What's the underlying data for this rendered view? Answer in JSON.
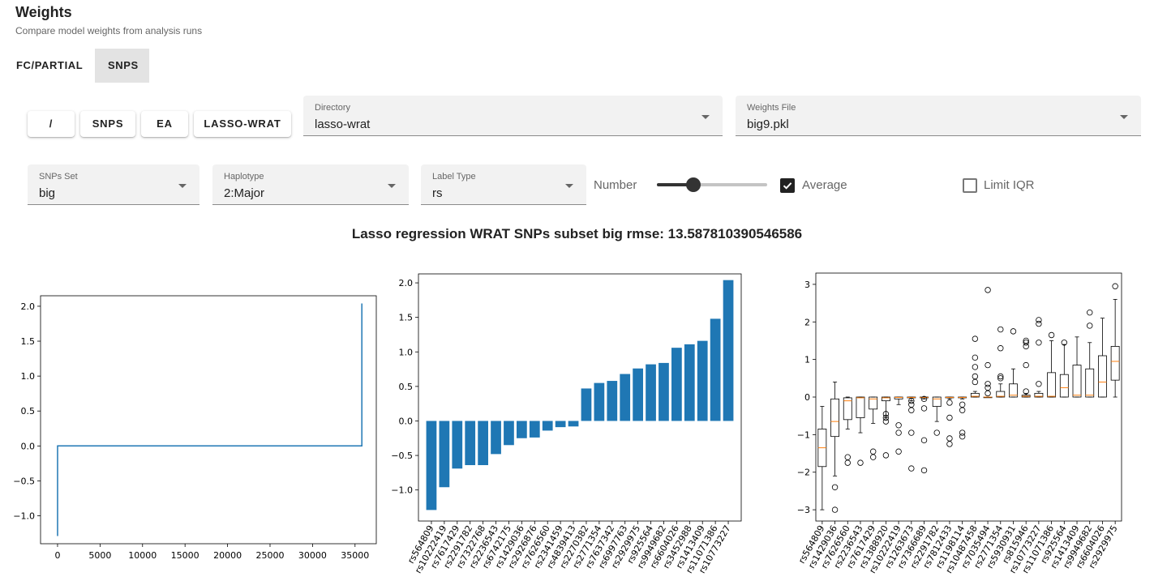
{
  "header": {
    "title": "Weights",
    "subtitle": "Compare model weights from analysis runs"
  },
  "tabs": [
    {
      "label": "FC/PARTIAL",
      "active": false
    },
    {
      "label": "SNPS",
      "active": true
    }
  ],
  "path_buttons": [
    "/",
    "SNPS",
    "EA",
    "LASSO-WRAT"
  ],
  "directory": {
    "label": "Directory",
    "value": "lasso-wrat"
  },
  "weights_file": {
    "label": "Weights File",
    "value": "big9.pkl"
  },
  "snps_set": {
    "label": "SNPs Set",
    "value": "big"
  },
  "haplotype": {
    "label": "Haplotype",
    "value": "2:Major"
  },
  "label_type": {
    "label": "Label Type",
    "value": "rs"
  },
  "number": {
    "label": "Number",
    "value": 0.33
  },
  "average": {
    "label": "Average",
    "checked": true
  },
  "limit_iqr": {
    "label": "Limit IQR",
    "checked": false
  },
  "plot_title": "Lasso regression WRAT SNPs subset big rmse: 13.587810390546586",
  "colors": {
    "bar": "#1f77b4",
    "line": "#1f77b4",
    "median": "#ff7f0e"
  },
  "chart_data": [
    {
      "type": "line",
      "xlim": [
        -2000,
        37500
      ],
      "ylim": [
        -1.4,
        2.15
      ],
      "xticks": [
        0,
        5000,
        10000,
        15000,
        20000,
        25000,
        30000,
        35000
      ],
      "yticks": [
        2.0,
        1.5,
        1.0,
        0.5,
        0.0,
        -0.5,
        -1.0
      ],
      "tick_labels_x": [
        "0",
        "5000",
        "10000",
        "15000",
        "20000",
        "25000",
        "30000",
        "35000"
      ],
      "tick_labels_y": [
        "2.0",
        "1.5",
        "1.0",
        "0.5",
        "0.0",
        "−0.5",
        "−1.0"
      ],
      "points": [
        [
          0,
          -1.29
        ],
        [
          0,
          0
        ],
        [
          35800,
          0
        ],
        [
          35800,
          2.04
        ]
      ]
    },
    {
      "type": "bar",
      "ylim": [
        -1.45,
        2.13
      ],
      "yticks": [
        2.0,
        1.5,
        1.0,
        0.5,
        0.0,
        -0.5,
        -1.0
      ],
      "tick_labels_y": [
        "2.0",
        "1.5",
        "1.0",
        "0.5",
        "0.0",
        "−0.5",
        "−1.0"
      ],
      "categories": [
        "rs564809",
        "rs10222419",
        "rs7617429",
        "rs2291782",
        "rs7322768",
        "rs2236543",
        "rs6742175",
        "rs1429036",
        "rs2926876",
        "rs7626560",
        "rs2341459",
        "rs4839413",
        "rs2270382",
        "rs2771354",
        "rs7637342",
        "rs6997763",
        "rs2929975",
        "rs925564",
        "rs9949682",
        "rs6604026",
        "rs3452988",
        "rs1413409",
        "rs11071386",
        "rs10773227"
      ],
      "values": [
        -1.29,
        -0.96,
        -0.69,
        -0.64,
        -0.64,
        -0.48,
        -0.35,
        -0.25,
        -0.24,
        -0.14,
        -0.09,
        -0.08,
        0.47,
        0.55,
        0.58,
        0.68,
        0.76,
        0.82,
        0.84,
        1.06,
        1.11,
        1.16,
        1.48,
        2.04
      ]
    },
    {
      "type": "box",
      "ylim": [
        -3.3,
        3.3
      ],
      "yticks": [
        3,
        2,
        1,
        0,
        -1,
        -2,
        -3
      ],
      "tick_labels_y": [
        "3",
        "2",
        "1",
        "0",
        "−1",
        "−2",
        "−3"
      ],
      "categories": [
        "rs564809",
        "rs1429036",
        "rs7626560",
        "rs2236543",
        "rs7617429",
        "rs1388920",
        "rs10222419",
        "rs1263673",
        "rs7366689",
        "rs2291782",
        "rs7812433",
        "rs1198114",
        "rs10487458",
        "rs7035494",
        "rs2771354",
        "rs5930931",
        "rs815946",
        "rs10773227",
        "rs11071386",
        "rs925564",
        "rs1413409",
        "rs9949682",
        "rs6604026",
        "rs2929975"
      ],
      "boxes": [
        {
          "whislo": -3.0,
          "q1": -1.85,
          "med": -1.35,
          "q3": -0.85,
          "whishi": -0.25,
          "fliers": []
        },
        {
          "whislo": -2.1,
          "q1": -1.05,
          "med": -0.65,
          "q3": -0.05,
          "whishi": 0.4,
          "fliers": [
            -2.4,
            -3.0
          ]
        },
        {
          "whislo": -0.85,
          "q1": -0.6,
          "med": -0.1,
          "q3": -0.02,
          "whishi": 0.0,
          "fliers": [
            -1.6,
            -1.75
          ]
        },
        {
          "whislo": -0.95,
          "q1": -0.55,
          "med": -0.02,
          "q3": 0.0,
          "whishi": 0.0,
          "fliers": [
            -1.75
          ]
        },
        {
          "whislo": -0.7,
          "q1": -0.32,
          "med": -0.05,
          "q3": 0.0,
          "whishi": 0.0,
          "fliers": [
            -1.45,
            -1.6
          ]
        },
        {
          "whislo": -0.55,
          "q1": -0.1,
          "med": -0.02,
          "q3": 0.0,
          "whishi": 0.0,
          "fliers": [
            -0.45,
            -0.55,
            -0.65,
            -1.55
          ]
        },
        {
          "whislo": -0.2,
          "q1": -0.05,
          "med": -0.01,
          "q3": 0.0,
          "whishi": 0.0,
          "fliers": [
            -0.75,
            -0.95,
            -1.45
          ]
        },
        {
          "whislo": -0.1,
          "q1": -0.02,
          "med": -0.01,
          "q3": 0.0,
          "whishi": 0.0,
          "fliers": [
            -0.1,
            -0.2,
            -0.35,
            -0.95,
            -1.9
          ]
        },
        {
          "whislo": -0.05,
          "q1": -0.02,
          "med": -0.01,
          "q3": 0.0,
          "whishi": 0.0,
          "fliers": [
            -0.05,
            -0.3,
            -1.15,
            -1.95
          ]
        },
        {
          "whislo": -0.65,
          "q1": -0.25,
          "med": -0.05,
          "q3": 0.0,
          "whishi": 0.0,
          "fliers": [
            -0.95
          ]
        },
        {
          "whislo": -0.05,
          "q1": -0.02,
          "med": -0.01,
          "q3": 0.0,
          "whishi": 0.0,
          "fliers": [
            -0.15,
            -0.55,
            -1.1,
            -1.25
          ]
        },
        {
          "whislo": -0.05,
          "q1": -0.02,
          "med": -0.01,
          "q3": 0.0,
          "whishi": 0.0,
          "fliers": [
            -0.2,
            -0.35,
            -0.95,
            -1.05
          ]
        },
        {
          "whislo": 0.0,
          "q1": 0.0,
          "med": 0.02,
          "q3": 0.1,
          "whishi": 0.15,
          "fliers": [
            0.4,
            0.55,
            0.8,
            1.05,
            1.55
          ]
        },
        {
          "whislo": 0.0,
          "q1": 0.0,
          "med": 0.0,
          "q3": 0.0,
          "whishi": 0.0,
          "fliers": [
            0.1,
            0.25,
            0.35,
            0.85,
            2.85
          ]
        },
        {
          "whislo": 0.0,
          "q1": 0.0,
          "med": 0.02,
          "q3": 0.15,
          "whishi": 0.35,
          "fliers": [
            0.5,
            0.55,
            1.3,
            1.8
          ]
        },
        {
          "whislo": 0.0,
          "q1": 0.0,
          "med": 0.05,
          "q3": 0.35,
          "whishi": 0.75,
          "fliers": [
            1.75
          ]
        },
        {
          "whislo": 0.0,
          "q1": 0.0,
          "med": 0.02,
          "q3": 0.05,
          "whishi": 0.1,
          "fliers": [
            0.15,
            0.85,
            1.35,
            1.45,
            1.5
          ]
        },
        {
          "whislo": 0.0,
          "q1": 0.0,
          "med": 0.02,
          "q3": 0.1,
          "whishi": 0.15,
          "fliers": [
            0.35,
            1.45,
            1.95,
            2.05
          ]
        },
        {
          "whislo": 0.0,
          "q1": 0.0,
          "med": 0.02,
          "q3": 0.65,
          "whishi": 1.5,
          "fliers": [
            1.65
          ]
        },
        {
          "whislo": 0.0,
          "q1": 0.0,
          "med": 0.25,
          "q3": 0.6,
          "whishi": 1.4,
          "fliers": [
            1.45
          ]
        },
        {
          "whislo": 0.0,
          "q1": 0.0,
          "med": 0.05,
          "q3": 0.85,
          "whishi": 1.6,
          "fliers": []
        },
        {
          "whislo": 0.0,
          "q1": 0.0,
          "med": 0.05,
          "q3": 0.75,
          "whishi": 1.45,
          "fliers": [
            1.9,
            2.25
          ]
        },
        {
          "whislo": 0.0,
          "q1": 0.0,
          "med": 0.4,
          "q3": 1.1,
          "whishi": 2.1,
          "fliers": []
        },
        {
          "whislo": 0.0,
          "q1": 0.45,
          "med": 0.95,
          "q3": 1.35,
          "whishi": 2.6,
          "fliers": [
            2.95
          ]
        }
      ]
    }
  ]
}
